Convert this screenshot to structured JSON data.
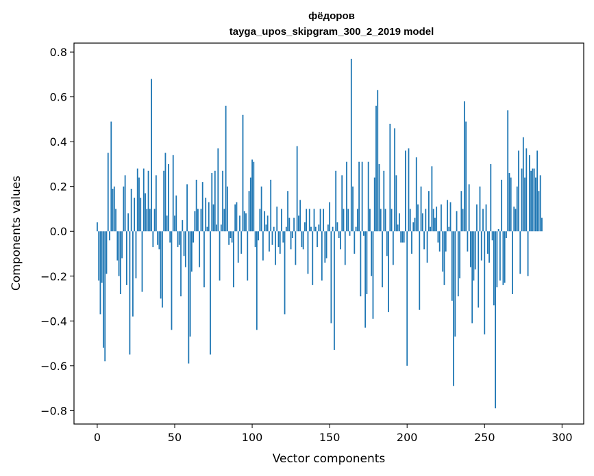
{
  "chart_data": {
    "type": "bar",
    "title": "фёдоров",
    "subtitle": "tayga_upos_skipgram_300_2_2019 model",
    "xlabel": "Vector components",
    "ylabel": "Components values",
    "xlim": [
      -15,
      314
    ],
    "ylim": [
      -0.86,
      0.84
    ],
    "xticks": [
      0,
      50,
      100,
      150,
      200,
      250,
      300
    ],
    "xtick_labels": [
      "0",
      "50",
      "100",
      "150",
      "200",
      "250",
      "300"
    ],
    "yticks": [
      -0.8,
      -0.6,
      -0.4,
      -0.2,
      0.0,
      0.2,
      0.4,
      0.6,
      0.8
    ],
    "ytick_labels": [
      "−0.8",
      "−0.6",
      "−0.4",
      "−0.2",
      "0.0",
      "0.2",
      "0.4",
      "0.6",
      "0.8"
    ],
    "grid": false,
    "bar_color": "#1f77b4",
    "values": [
      0.04,
      -0.22,
      -0.37,
      -0.23,
      -0.52,
      -0.58,
      -0.19,
      0.35,
      -0.04,
      0.49,
      0.19,
      0.2,
      0.1,
      -0.13,
      -0.2,
      -0.28,
      -0.12,
      0.2,
      0.25,
      -0.24,
      0.08,
      -0.55,
      0.19,
      -0.38,
      0.15,
      -0.21,
      0.28,
      0.24,
      0.15,
      -0.27,
      0.28,
      0.17,
      0.1,
      0.27,
      0.1,
      0.68,
      -0.07,
      0.1,
      0.25,
      -0.06,
      -0.08,
      -0.3,
      -0.34,
      0.27,
      0.35,
      0.07,
      0.3,
      -0.05,
      -0.44,
      0.34,
      0.07,
      0.16,
      -0.07,
      -0.06,
      -0.29,
      0.05,
      -0.11,
      -0.16,
      0.21,
      -0.59,
      -0.47,
      -0.18,
      -0.05,
      0.09,
      0.23,
      0.1,
      -0.16,
      0.1,
      0.22,
      -0.25,
      0.15,
      0.02,
      0.13,
      -0.55,
      0.26,
      0.12,
      0.27,
      0.03,
      0.37,
      -0.22,
      0.03,
      0.27,
      0.1,
      0.56,
      0.2,
      -0.06,
      -0.03,
      -0.05,
      -0.25,
      0.12,
      0.13,
      -0.14,
      0.07,
      -0.1,
      0.52,
      0.09,
      0.08,
      -0.22,
      0.18,
      0.24,
      0.32,
      0.31,
      -0.07,
      -0.44,
      -0.04,
      0.1,
      0.2,
      -0.13,
      0.09,
      0.03,
      0.07,
      -0.09,
      0.23,
      -0.06,
      0.02,
      -0.15,
      0.11,
      -0.07,
      -0.1,
      0.1,
      -0.05,
      -0.37,
      0.02,
      0.18,
      0.06,
      -0.08,
      -0.03,
      0.06,
      -0.15,
      0.38,
      0.07,
      0.14,
      -0.07,
      -0.08,
      0.04,
      0.1,
      -0.19,
      0.1,
      0.02,
      -0.24,
      0.1,
      0.02,
      -0.07,
      0.03,
      0.1,
      -0.22,
      0.1,
      -0.14,
      -0.12,
      0.03,
      0.13,
      -0.41,
      0.02,
      -0.53,
      0.27,
      0.04,
      -0.03,
      -0.08,
      0.25,
      0.1,
      -0.15,
      0.31,
      0.1,
      -0.02,
      0.77,
      0.2,
      -0.1,
      0.02,
      0.1,
      0.31,
      -0.29,
      0.31,
      -0.02,
      -0.43,
      -0.28,
      0.31,
      0.1,
      -0.2,
      -0.39,
      0.24,
      0.56,
      0.63,
      0.3,
      0.1,
      -0.25,
      0.27,
      0.1,
      -0.11,
      -0.36,
      0.48,
      0.1,
      -0.15,
      0.46,
      0.25,
      0.03,
      0.08,
      -0.05,
      -0.05,
      -0.05,
      0.36,
      -0.6,
      0.37,
      0.1,
      -0.1,
      0.04,
      0.06,
      0.33,
      0.12,
      -0.35,
      0.2,
      0.08,
      -0.08,
      0.1,
      -0.14,
      0.18,
      0.02,
      0.29,
      0.1,
      0.06,
      0.11,
      -0.05,
      -0.09,
      0.12,
      -0.18,
      -0.24,
      -0.09,
      0.14,
      0.02,
      0.13,
      -0.31,
      -0.69,
      -0.47,
      0.09,
      -0.29,
      -0.21,
      0.18,
      0.1,
      0.58,
      0.49,
      -0.09,
      0.21,
      -0.16,
      -0.41,
      -0.22,
      -0.17,
      0.12,
      -0.34,
      0.2,
      -0.13,
      0.1,
      -0.46,
      0.12,
      -0.1,
      -0.14,
      0.3,
      -0.04,
      -0.33,
      -0.79,
      -0.25,
      0.01,
      -0.22,
      0.23,
      -0.24,
      -0.23,
      -0.03,
      0.54,
      0.26,
      0.24,
      -0.28,
      0.11,
      0.1,
      0.2,
      0.36,
      -0.19,
      0.28,
      0.42,
      0.24,
      0.37,
      -0.2,
      0.34,
      0.27,
      0.28,
      0.28,
      0.24,
      0.36,
      0.18,
      0.25,
      0.06
    ]
  }
}
